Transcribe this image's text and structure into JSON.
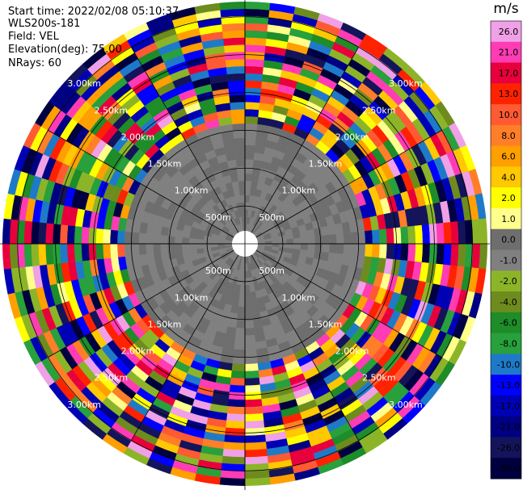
{
  "header": {
    "start_time": "Start time: 2022/02/08 05:10:37",
    "instrument": "WLS200s-181",
    "field": "Field: VEL",
    "elevation": "Elevation(deg): 75.00",
    "nrays": "NRays: 60"
  },
  "chart_data": {
    "type": "heatmap",
    "projection": "polar-ppi",
    "field": "VEL",
    "units": "m/s",
    "n_rays": 60,
    "elevation_deg": 75.0,
    "range_rings_km": [
      0.5,
      1.0,
      1.5,
      2.0,
      2.5,
      3.0
    ],
    "range_ring_labels": [
      "500m",
      "1.00km",
      "1.50km",
      "2.00km",
      "2.50km",
      "3.00km"
    ],
    "max_range_km": 3.2,
    "gate_spacing_km": 0.1,
    "velocity_range": [
      -30.0,
      30.0
    ],
    "grid": true,
    "colorbar": {
      "label": "m/s",
      "placement": "right",
      "ticks": [
        "26.0",
        "21.0",
        "17.0",
        "13.0",
        "10.0",
        "8.0",
        "6.0",
        "4.0",
        "2.0",
        "1.0",
        "0.0",
        "-1.0",
        "-2.0",
        "-4.0",
        "-6.0",
        "-8.0",
        "-10.0",
        "-13.0",
        "-17.0",
        "-21.0",
        "-26.0",
        "-30.0"
      ],
      "colors_top_to_bottom": [
        "#f0a0e6",
        "#ff3cb4",
        "#e8003c",
        "#ff2200",
        "#ff5a32",
        "#ff7e28",
        "#ff9f00",
        "#ffc800",
        "#ffff00",
        "#ffff8c",
        "#6e6e6e",
        "#808080",
        "#8cb428",
        "#6e8c1e",
        "#1e8c28",
        "#28a03c",
        "#1e7ac8",
        "#0000ff",
        "#0000b4",
        "#000082",
        "#14145a",
        "#000040"
      ]
    },
    "inner_region": {
      "max_range_km": 1.6,
      "values": [
        0.0,
        -1.0
      ],
      "note": "near-zero velocities within about 1.6 km"
    },
    "clear_air_ring_km": [
      1.45,
      1.62
    ],
    "clear_air_ring_value": 2.0
  }
}
